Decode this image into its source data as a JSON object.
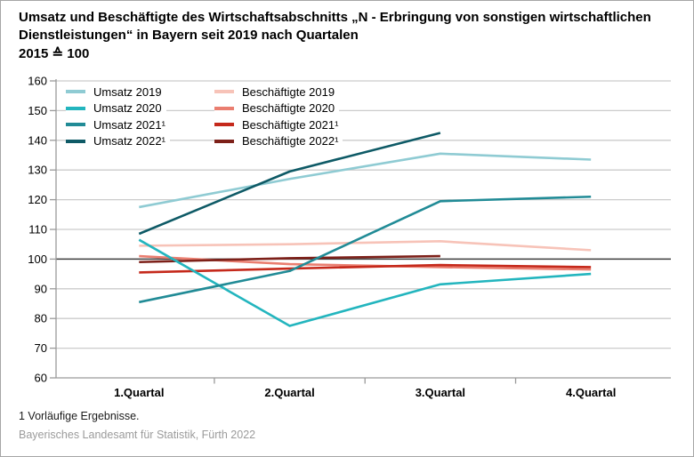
{
  "header": {
    "subtitle": "2015 ≙ 100"
  },
  "footer": {
    "footnote": "1 Vorläufige Ergebnisse.",
    "source": "Bayerisches Landesamt für Statistik, Fürth 2022"
  },
  "chart_data": {
    "type": "line",
    "title": "Umsatz und Beschäftigte des Wirtschaftsabschnitts „N - Erbringung von sonstigen wirtschaftlichen Dienstleistungen“ in Bayern seit 2019 nach Quartalen",
    "subtitle": "2015 ≙ 100",
    "categories": [
      "1.Quartal",
      "2.Quartal",
      "3.Quartal",
      "4.Quartal"
    ],
    "ylim": [
      60,
      160
    ],
    "ytick_step": 10,
    "baseline": 100,
    "grid": true,
    "legend_position": "inside plot, top-left, two columns",
    "colors": {
      "gridline": "#cccccc",
      "axis": "#9a9a9a",
      "baseline": "#3d3d3d"
    },
    "series": [
      {
        "name": "Umsatz 2019",
        "color": "#8fcbd3",
        "values": [
          117.5,
          127,
          135.5,
          133.5
        ]
      },
      {
        "name": "Umsatz 2020",
        "color": "#23b5be",
        "values": [
          106.5,
          77.5,
          91.5,
          95
        ]
      },
      {
        "name": "Umsatz 2021¹",
        "color": "#218b96",
        "values": [
          85.5,
          96,
          119.5,
          121
        ]
      },
      {
        "name": "Umsatz 2022¹",
        "color": "#0e5a66",
        "values": [
          108.5,
          129.5,
          142.5,
          null
        ]
      },
      {
        "name": "Beschäftigte 2019",
        "color": "#f7c3b8",
        "values": [
          104.5,
          105,
          106,
          103
        ]
      },
      {
        "name": "Beschäftigte 2020",
        "color": "#ea7e70",
        "values": [
          101,
          98.3,
          97.3,
          96.5
        ]
      },
      {
        "name": "Beschäftigte 2021¹",
        "color": "#c5291b",
        "values": [
          95.5,
          96.8,
          98,
          97.3
        ]
      },
      {
        "name": "Beschäftigte 2022¹",
        "color": "#7d2019",
        "values": [
          99,
          100.3,
          101,
          null
        ]
      }
    ]
  }
}
